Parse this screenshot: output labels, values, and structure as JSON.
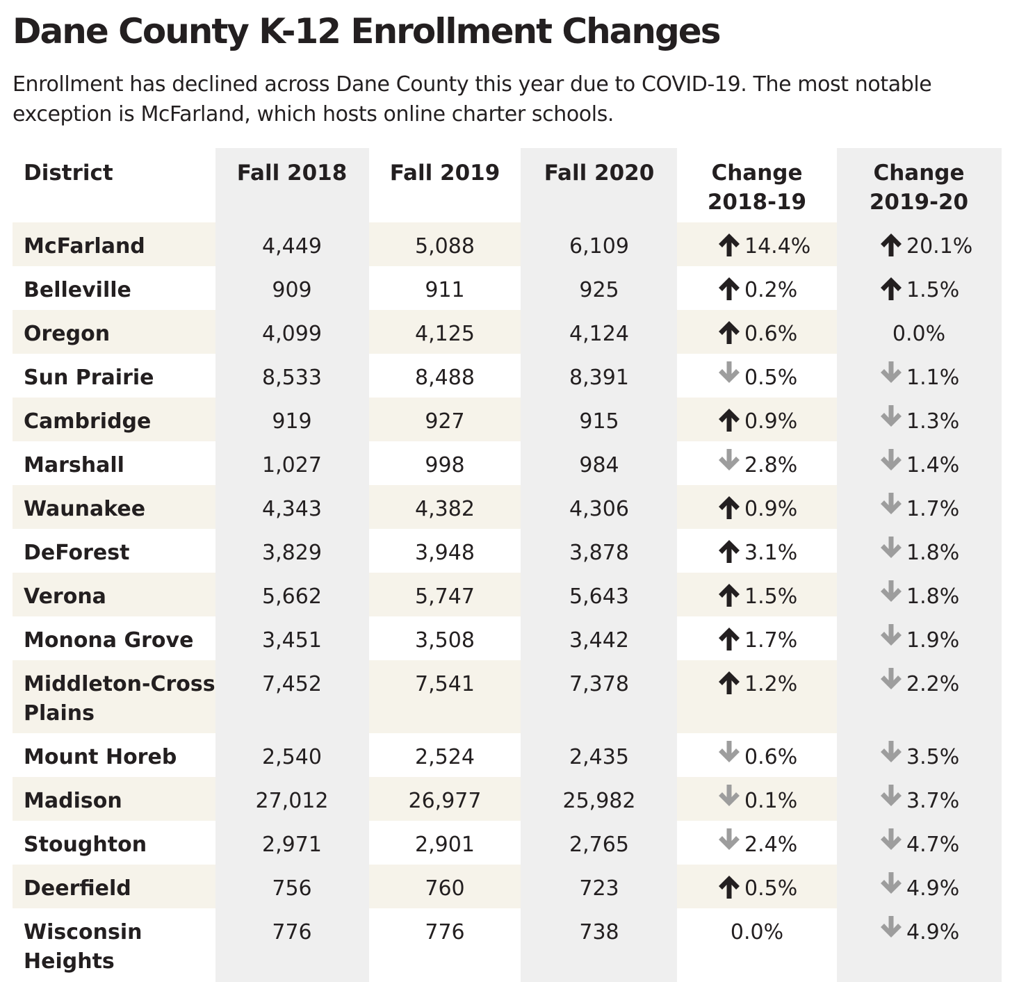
{
  "title": "Dane County K-12 Enrollment Changes",
  "subtitle": "Enrollment has declined across Dane County this year due to COVID-19. The most notable exception is McFarland, which hosts online charter schools.",
  "colors": {
    "shaded_column": "#efefef",
    "shaded_row": "#f6f3ea",
    "up_arrow": "#231f20",
    "down_arrow": "#9d9d9d",
    "text": "#231f20"
  },
  "chart_data": {
    "type": "table",
    "title": "Dane County K-12 Enrollment Changes",
    "columns": [
      "District",
      "Fall 2018",
      "Fall 2019",
      "Fall 2020",
      "Change 2018-19",
      "Change 2019-20"
    ],
    "column_header_lines": [
      [
        "District"
      ],
      [
        "Fall 2018"
      ],
      [
        "Fall 2019"
      ],
      [
        "Fall 2020"
      ],
      [
        "Change",
        "2018-19"
      ],
      [
        "Change",
        "2019-20"
      ]
    ],
    "rows": [
      {
        "district": [
          "McFarland"
        ],
        "fall2018": "4,449",
        "fall2019": "5,088",
        "fall2020": "6,109",
        "change_2018_19": {
          "value": "14.4%",
          "dir": "up"
        },
        "change_2019_20": {
          "value": "20.1%",
          "dir": "up"
        }
      },
      {
        "district": [
          "Belleville"
        ],
        "fall2018": "909",
        "fall2019": "911",
        "fall2020": "925",
        "change_2018_19": {
          "value": "0.2%",
          "dir": "up"
        },
        "change_2019_20": {
          "value": "1.5%",
          "dir": "up"
        }
      },
      {
        "district": [
          "Oregon"
        ],
        "fall2018": "4,099",
        "fall2019": "4,125",
        "fall2020": "4,124",
        "change_2018_19": {
          "value": "0.6%",
          "dir": "up"
        },
        "change_2019_20": {
          "value": "0.0%",
          "dir": "none"
        }
      },
      {
        "district": [
          "Sun Prairie"
        ],
        "fall2018": "8,533",
        "fall2019": "8,488",
        "fall2020": "8,391",
        "change_2018_19": {
          "value": "0.5%",
          "dir": "down"
        },
        "change_2019_20": {
          "value": "1.1%",
          "dir": "down"
        }
      },
      {
        "district": [
          "Cambridge"
        ],
        "fall2018": "919",
        "fall2019": "927",
        "fall2020": "915",
        "change_2018_19": {
          "value": "0.9%",
          "dir": "up"
        },
        "change_2019_20": {
          "value": "1.3%",
          "dir": "down"
        }
      },
      {
        "district": [
          "Marshall"
        ],
        "fall2018": "1,027",
        "fall2019": "998",
        "fall2020": "984",
        "change_2018_19": {
          "value": "2.8%",
          "dir": "down"
        },
        "change_2019_20": {
          "value": "1.4%",
          "dir": "down"
        }
      },
      {
        "district": [
          "Waunakee"
        ],
        "fall2018": "4,343",
        "fall2019": "4,382",
        "fall2020": "4,306",
        "change_2018_19": {
          "value": "0.9%",
          "dir": "up"
        },
        "change_2019_20": {
          "value": "1.7%",
          "dir": "down"
        }
      },
      {
        "district": [
          "DeForest"
        ],
        "fall2018": "3,829",
        "fall2019": "3,948",
        "fall2020": "3,878",
        "change_2018_19": {
          "value": "3.1%",
          "dir": "up"
        },
        "change_2019_20": {
          "value": "1.8%",
          "dir": "down"
        }
      },
      {
        "district": [
          "Verona"
        ],
        "fall2018": "5,662",
        "fall2019": "5,747",
        "fall2020": "5,643",
        "change_2018_19": {
          "value": "1.5%",
          "dir": "up"
        },
        "change_2019_20": {
          "value": "1.8%",
          "dir": "down"
        }
      },
      {
        "district": [
          "Monona Grove"
        ],
        "fall2018": "3,451",
        "fall2019": "3,508",
        "fall2020": "3,442",
        "change_2018_19": {
          "value": "1.7%",
          "dir": "up"
        },
        "change_2019_20": {
          "value": "1.9%",
          "dir": "down"
        }
      },
      {
        "district": [
          "Middleton-Cross",
          "Plains"
        ],
        "fall2018": "7,452",
        "fall2019": "7,541",
        "fall2020": "7,378",
        "change_2018_19": {
          "value": "1.2%",
          "dir": "up"
        },
        "change_2019_20": {
          "value": "2.2%",
          "dir": "down"
        }
      },
      {
        "district": [
          "Mount Horeb"
        ],
        "fall2018": "2,540",
        "fall2019": "2,524",
        "fall2020": "2,435",
        "change_2018_19": {
          "value": "0.6%",
          "dir": "down"
        },
        "change_2019_20": {
          "value": "3.5%",
          "dir": "down"
        }
      },
      {
        "district": [
          "Madison"
        ],
        "fall2018": "27,012",
        "fall2019": "26,977",
        "fall2020": "25,982",
        "change_2018_19": {
          "value": "0.1%",
          "dir": "down"
        },
        "change_2019_20": {
          "value": "3.7%",
          "dir": "down"
        }
      },
      {
        "district": [
          "Stoughton"
        ],
        "fall2018": "2,971",
        "fall2019": "2,901",
        "fall2020": "2,765",
        "change_2018_19": {
          "value": "2.4%",
          "dir": "down"
        },
        "change_2019_20": {
          "value": "4.7%",
          "dir": "down"
        }
      },
      {
        "district": [
          "Deerfield"
        ],
        "fall2018": "756",
        "fall2019": "760",
        "fall2020": "723",
        "change_2018_19": {
          "value": "0.5%",
          "dir": "up"
        },
        "change_2019_20": {
          "value": "4.9%",
          "dir": "down"
        }
      },
      {
        "district": [
          "Wisconsin",
          "Heights"
        ],
        "fall2018": "776",
        "fall2019": "776",
        "fall2020": "738",
        "change_2018_19": {
          "value": "0.0%",
          "dir": "none"
        },
        "change_2019_20": {
          "value": "4.9%",
          "dir": "down"
        }
      }
    ]
  }
}
